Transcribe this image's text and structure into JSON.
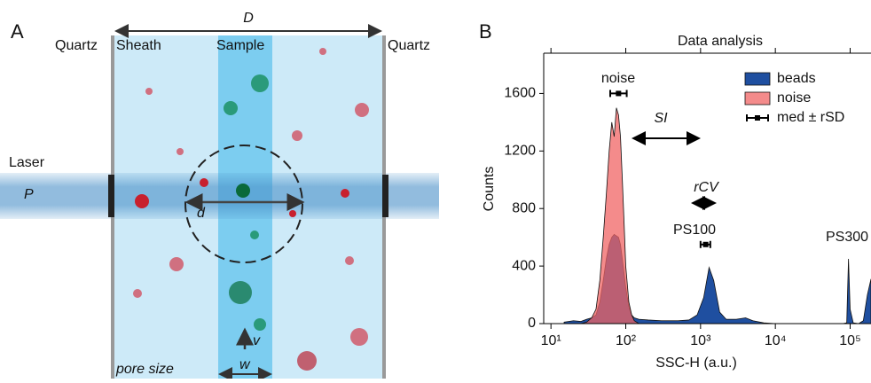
{
  "panel_a": {
    "letter": "A",
    "width_label": "D",
    "left_wall": "Quartz",
    "sheath": "Sheath",
    "sample": "Sample",
    "right_wall": "Quartz",
    "laser": "Laser",
    "power": "P",
    "beam_diameter": "d",
    "velocity": "v",
    "stream_width": "w",
    "pore_size": "pore size"
  },
  "chart_data": {
    "type": "area",
    "letter": "B",
    "title": "Data analysis",
    "x_label": "SSC-H (a.u.)",
    "y_label": "Counts",
    "log_x": true,
    "xlim": [
      8,
      190000
    ],
    "ylim": [
      0,
      1880
    ],
    "xticks": [
      {
        "value": 10,
        "label": "10¹"
      },
      {
        "value": 100,
        "label": "10²"
      },
      {
        "value": 1000,
        "label": "10³"
      },
      {
        "value": 10000,
        "label": "10⁴"
      },
      {
        "value": 100000,
        "label": "10⁵"
      }
    ],
    "yticks": [
      0,
      400,
      800,
      1200,
      1600
    ],
    "legend": "top-right",
    "x": [
      15,
      20,
      25,
      30,
      35,
      40,
      45,
      50,
      55,
      60,
      65,
      70,
      75,
      80,
      85,
      90,
      95,
      100,
      110,
      120,
      130,
      150,
      200,
      300,
      500,
      700,
      900,
      1100,
      1300,
      1500,
      1800,
      2200,
      3000,
      4000,
      5000,
      7000,
      10000,
      30000,
      80000,
      90000,
      95000,
      100000,
      110000,
      130000,
      150000,
      170000,
      190000
    ],
    "series": [
      {
        "name": "beads",
        "color": "#1f4fa0",
        "values": [
          10,
          20,
          15,
          30,
          40,
          60,
          150,
          300,
          450,
          550,
          600,
          620,
          610,
          600,
          550,
          450,
          350,
          250,
          120,
          60,
          40,
          30,
          25,
          20,
          20,
          25,
          60,
          180,
          390,
          300,
          80,
          30,
          30,
          40,
          20,
          5,
          0,
          0,
          0,
          5,
          450,
          100,
          5,
          0,
          20,
          200,
          310
        ]
      },
      {
        "name": "noise",
        "color": "#f06464",
        "values": [
          0,
          0,
          0,
          10,
          40,
          100,
          300,
          600,
          900,
          1200,
          1400,
          1300,
          1500,
          1450,
          1300,
          1000,
          700,
          400,
          150,
          60,
          20,
          0,
          0,
          0,
          0,
          0,
          0,
          0,
          0,
          0,
          0,
          0,
          0,
          0,
          0,
          0,
          0,
          0,
          0,
          0,
          0,
          0,
          0,
          0,
          0,
          0,
          0
        ]
      }
    ],
    "error_bar_name": "med ± rSD",
    "error_bars": [
      {
        "x": 80,
        "xlow": 62,
        "xhigh": 103,
        "y": 1600
      },
      {
        "x": 1170,
        "xlow": 1000,
        "xhigh": 1350,
        "y": 550
      }
    ],
    "annotations": [
      "noise",
      "PS100",
      "PS300",
      "SI",
      "rCV"
    ]
  }
}
